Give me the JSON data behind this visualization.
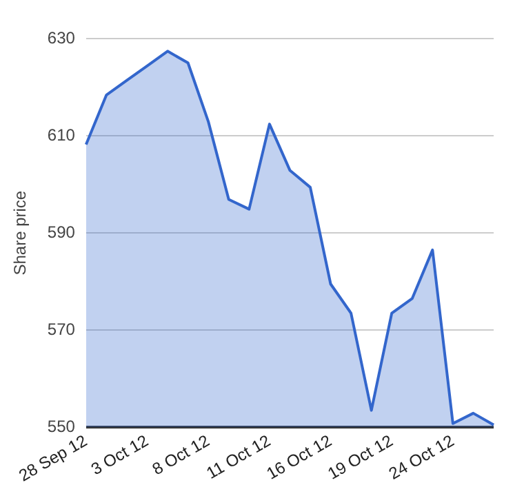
{
  "chart_data": {
    "type": "area",
    "ylabel": "Share price",
    "categories": [
      "28 Sep 12",
      null,
      null,
      "3 Oct 12",
      null,
      null,
      "8 Oct 12",
      null,
      null,
      "11 Oct 12",
      null,
      null,
      "16 Oct 12",
      null,
      null,
      "19 Oct 12",
      null,
      null,
      "24 Oct 12",
      null,
      null
    ],
    "series": [
      {
        "color": "#3366cc",
        "values": [
          608.2,
          618.4,
          621.4,
          624.4,
          627.4,
          625.0,
          612.9,
          596.9,
          594.9,
          612.4,
          602.9,
          599.4,
          579.5,
          573.5,
          553.5,
          573.5,
          576.5,
          586.5,
          550.8,
          552.9,
          550.5
        ]
      }
    ],
    "ylim": [
      550,
      630
    ],
    "yticks": [
      550,
      570,
      590,
      610,
      630
    ],
    "grid": "y",
    "legend": false,
    "marker": "none",
    "line_style": "solid"
  }
}
